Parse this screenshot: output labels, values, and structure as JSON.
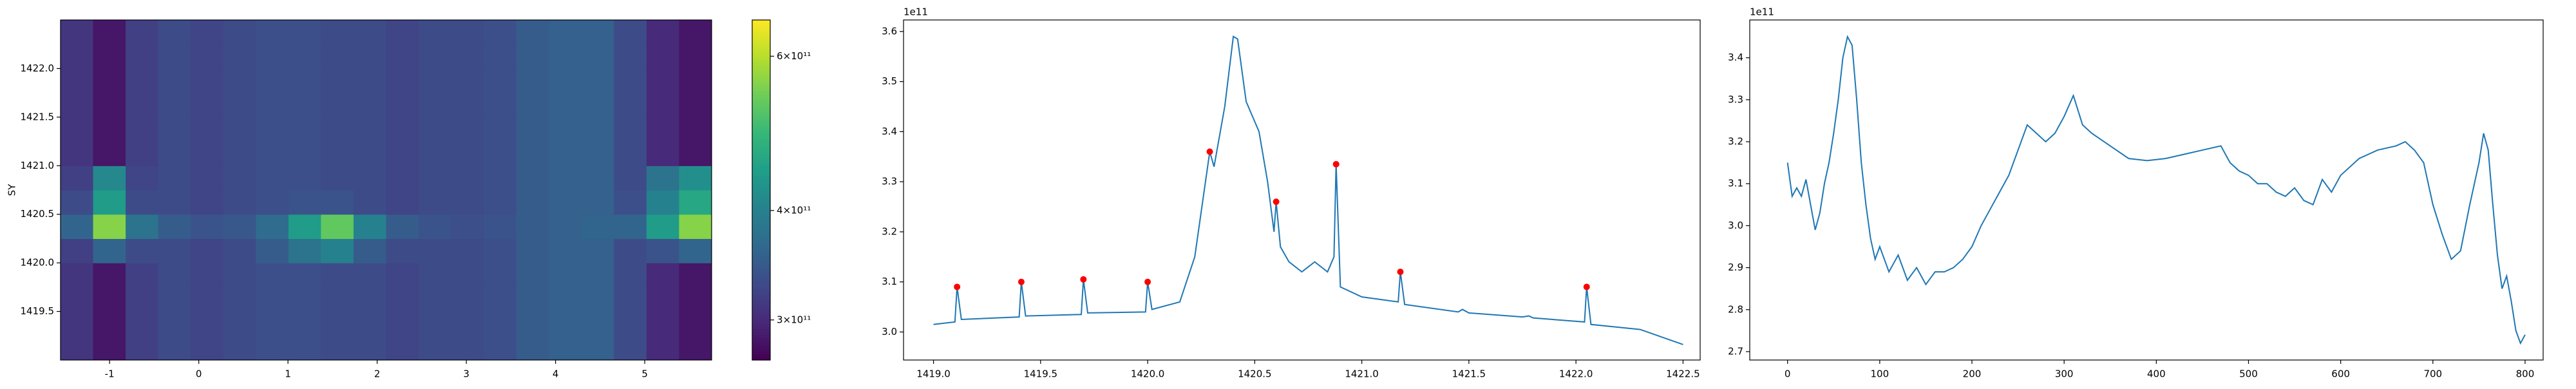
{
  "chart_data": [
    {
      "type": "heatmap",
      "ylabel": "SY",
      "colormap": "viridis",
      "log_color": true,
      "xlim": [
        -1.55,
        5.75
      ],
      "ylim": [
        1419.0,
        1422.5
      ],
      "xticks": [
        -1,
        0,
        1,
        2,
        3,
        4,
        5
      ],
      "yticks": [
        1419.5,
        {
          "value": 1420,
          "label": "1420.0"
        },
        1420.5,
        {
          "value": 1421,
          "label": "1421.0"
        },
        1421.5,
        {
          "value": 1422,
          "label": "1422.0"
        }
      ],
      "x_bins": [
        -1.55,
        -1.185,
        -0.82,
        -0.455,
        -0.09,
        0.275,
        0.64,
        1.005,
        1.37,
        1.735,
        2.1,
        2.465,
        2.83,
        3.195,
        3.56,
        3.925,
        4.29,
        4.655,
        5.02,
        5.385,
        5.75
      ],
      "y_bins": [
        1419.0,
        1419.25,
        1419.5,
        1419.75,
        1420.0,
        1420.25,
        1420.5,
        1420.75,
        1421.0,
        1421.25,
        1421.5,
        1421.75,
        1422.0,
        1422.25,
        1422.5
      ],
      "z": [
        [
          310000000000.0,
          285000000000.0,
          320000000000.0,
          330000000000.0,
          325000000000.0,
          330000000000.0,
          335000000000.0,
          335000000000.0,
          330000000000.0,
          330000000000.0,
          325000000000.0,
          330000000000.0,
          330000000000.0,
          335000000000.0,
          350000000000.0,
          355000000000.0,
          355000000000.0,
          330000000000.0,
          300000000000.0,
          285000000000.0
        ],
        [
          310000000000.0,
          285000000000.0,
          320000000000.0,
          330000000000.0,
          325000000000.0,
          330000000000.0,
          335000000000.0,
          335000000000.0,
          330000000000.0,
          330000000000.0,
          325000000000.0,
          330000000000.0,
          330000000000.0,
          335000000000.0,
          350000000000.0,
          355000000000.0,
          355000000000.0,
          330000000000.0,
          300000000000.0,
          285000000000.0
        ],
        [
          310000000000.0,
          285000000000.0,
          320000000000.0,
          330000000000.0,
          325000000000.0,
          330000000000.0,
          335000000000.0,
          335000000000.0,
          330000000000.0,
          330000000000.0,
          325000000000.0,
          330000000000.0,
          330000000000.0,
          335000000000.0,
          350000000000.0,
          355000000000.0,
          355000000000.0,
          330000000000.0,
          300000000000.0,
          285000000000.0
        ],
        [
          310000000000.0,
          285000000000.0,
          320000000000.0,
          330000000000.0,
          325000000000.0,
          330000000000.0,
          335000000000.0,
          335000000000.0,
          330000000000.0,
          330000000000.0,
          325000000000.0,
          330000000000.0,
          330000000000.0,
          335000000000.0,
          350000000000.0,
          355000000000.0,
          355000000000.0,
          330000000000.0,
          300000000000.0,
          285000000000.0
        ],
        [
          320000000000.0,
          360000000000.0,
          330000000000.0,
          330000000000.0,
          325000000000.0,
          330000000000.0,
          350000000000.0,
          380000000000.0,
          400000000000.0,
          350000000000.0,
          330000000000.0,
          330000000000.0,
          330000000000.0,
          335000000000.0,
          350000000000.0,
          355000000000.0,
          355000000000.0,
          330000000000.0,
          340000000000.0,
          360000000000.0
        ],
        [
          360000000000.0,
          560000000000.0,
          380000000000.0,
          350000000000.0,
          340000000000.0,
          345000000000.0,
          370000000000.0,
          440000000000.0,
          530000000000.0,
          400000000000.0,
          350000000000.0,
          340000000000.0,
          335000000000.0,
          340000000000.0,
          350000000000.0,
          355000000000.0,
          360000000000.0,
          360000000000.0,
          440000000000.0,
          560000000000.0
        ],
        [
          330000000000.0,
          440000000000.0,
          330000000000.0,
          330000000000.0,
          325000000000.0,
          330000000000.0,
          335000000000.0,
          340000000000.0,
          340000000000.0,
          330000000000.0,
          325000000000.0,
          330000000000.0,
          330000000000.0,
          335000000000.0,
          350000000000.0,
          355000000000.0,
          355000000000.0,
          335000000000.0,
          400000000000.0,
          460000000000.0
        ],
        [
          320000000000.0,
          410000000000.0,
          325000000000.0,
          330000000000.0,
          325000000000.0,
          330000000000.0,
          335000000000.0,
          335000000000.0,
          330000000000.0,
          330000000000.0,
          325000000000.0,
          330000000000.0,
          330000000000.0,
          335000000000.0,
          350000000000.0,
          355000000000.0,
          355000000000.0,
          330000000000.0,
          380000000000.0,
          420000000000.0
        ],
        [
          310000000000.0,
          285000000000.0,
          320000000000.0,
          330000000000.0,
          325000000000.0,
          330000000000.0,
          335000000000.0,
          335000000000.0,
          330000000000.0,
          330000000000.0,
          325000000000.0,
          330000000000.0,
          330000000000.0,
          335000000000.0,
          350000000000.0,
          355000000000.0,
          355000000000.0,
          330000000000.0,
          300000000000.0,
          285000000000.0
        ],
        [
          310000000000.0,
          285000000000.0,
          320000000000.0,
          330000000000.0,
          325000000000.0,
          330000000000.0,
          335000000000.0,
          335000000000.0,
          330000000000.0,
          330000000000.0,
          325000000000.0,
          330000000000.0,
          330000000000.0,
          335000000000.0,
          350000000000.0,
          355000000000.0,
          355000000000.0,
          330000000000.0,
          300000000000.0,
          285000000000.0
        ],
        [
          310000000000.0,
          285000000000.0,
          320000000000.0,
          330000000000.0,
          325000000000.0,
          330000000000.0,
          335000000000.0,
          335000000000.0,
          330000000000.0,
          330000000000.0,
          325000000000.0,
          330000000000.0,
          330000000000.0,
          335000000000.0,
          350000000000.0,
          355000000000.0,
          355000000000.0,
          330000000000.0,
          300000000000.0,
          285000000000.0
        ],
        [
          310000000000.0,
          285000000000.0,
          320000000000.0,
          330000000000.0,
          325000000000.0,
          330000000000.0,
          335000000000.0,
          335000000000.0,
          330000000000.0,
          330000000000.0,
          325000000000.0,
          330000000000.0,
          330000000000.0,
          335000000000.0,
          350000000000.0,
          355000000000.0,
          355000000000.0,
          330000000000.0,
          300000000000.0,
          285000000000.0
        ],
        [
          310000000000.0,
          285000000000.0,
          320000000000.0,
          330000000000.0,
          325000000000.0,
          330000000000.0,
          335000000000.0,
          335000000000.0,
          330000000000.0,
          330000000000.0,
          325000000000.0,
          330000000000.0,
          330000000000.0,
          335000000000.0,
          350000000000.0,
          355000000000.0,
          355000000000.0,
          330000000000.0,
          300000000000.0,
          285000000000.0
        ],
        [
          310000000000.0,
          285000000000.0,
          320000000000.0,
          330000000000.0,
          325000000000.0,
          330000000000.0,
          335000000000.0,
          335000000000.0,
          330000000000.0,
          330000000000.0,
          325000000000.0,
          330000000000.0,
          330000000000.0,
          335000000000.0,
          350000000000.0,
          355000000000.0,
          355000000000.0,
          330000000000.0,
          300000000000.0,
          285000000000.0
        ]
      ],
      "clim": [
        270000000000.0,
        660000000000.0
      ],
      "cticks": [
        {
          "value": 300000000000.0,
          "label": "3×10¹¹"
        },
        {
          "value": 400000000000.0,
          "label": "4×10¹¹"
        },
        {
          "value": 600000000000.0,
          "label": "6×10¹¹"
        }
      ]
    },
    {
      "type": "line",
      "offset_label": "1e11",
      "xlim": [
        1418.86,
        1422.58
      ],
      "ylim": [
        2.944,
        3.623
      ],
      "xticks": [
        {
          "value": 1419,
          "label": "1419.0"
        },
        1419.5,
        {
          "value": 1420,
          "label": "1420.0"
        },
        1420.5,
        {
          "value": 1421,
          "label": "1421.0"
        },
        1421.5,
        {
          "value": 1422,
          "label": "1422.0"
        },
        1422.5
      ],
      "yticks": [
        {
          "value": 3,
          "label": "3.0"
        },
        3.1,
        3.2,
        3.3,
        3.4,
        3.5,
        3.6
      ],
      "series": [
        {
          "color": "#1f77b4",
          "mode": "line",
          "x": [
            1419.0,
            1419.1,
            1419.11,
            1419.13,
            1419.4,
            1419.41,
            1419.43,
            1419.69,
            1419.7,
            1419.72,
            1419.99,
            1420.0,
            1420.02,
            1420.15,
            1420.22,
            1420.27,
            1420.29,
            1420.31,
            1420.36,
            1420.4,
            1420.42,
            1420.46,
            1420.52,
            1420.56,
            1420.59,
            1420.6,
            1420.62,
            1420.66,
            1420.72,
            1420.78,
            1420.84,
            1420.87,
            1420.88,
            1420.9,
            1421.0,
            1421.17,
            1421.18,
            1421.2,
            1421.45,
            1421.47,
            1421.5,
            1421.75,
            1421.78,
            1421.8,
            1422.04,
            1422.05,
            1422.07,
            1422.3,
            1422.5
          ],
          "values": [
            3.015,
            3.02,
            3.09,
            3.025,
            3.03,
            3.1,
            3.032,
            3.035,
            3.105,
            3.038,
            3.04,
            3.1,
            3.045,
            3.06,
            3.15,
            3.3,
            3.36,
            3.33,
            3.45,
            3.59,
            3.585,
            3.46,
            3.4,
            3.3,
            3.2,
            3.26,
            3.17,
            3.14,
            3.12,
            3.14,
            3.12,
            3.15,
            3.335,
            3.09,
            3.07,
            3.06,
            3.12,
            3.055,
            3.04,
            3.045,
            3.038,
            3.03,
            3.032,
            3.028,
            3.02,
            3.09,
            3.015,
            3.005,
            2.975
          ]
        },
        {
          "color": "#ff0000",
          "mode": "markers",
          "x": [
            1419.11,
            1419.41,
            1419.7,
            1420.0,
            1420.29,
            1420.6,
            1420.88,
            1421.18,
            1422.05
          ],
          "values": [
            3.09,
            3.1,
            3.105,
            3.1,
            3.36,
            3.26,
            3.335,
            3.12,
            3.09
          ]
        }
      ]
    },
    {
      "type": "line",
      "offset_label": "1e11",
      "xlim": [
        -41,
        819.6
      ],
      "ylim": [
        2.68,
        3.49
      ],
      "xticks": [
        0,
        100,
        200,
        300,
        400,
        500,
        600,
        700,
        800
      ],
      "yticks": [
        2.7,
        2.8,
        2.9,
        {
          "value": 3,
          "label": "3.0"
        },
        3.1,
        3.2,
        3.3,
        3.4
      ],
      "series": [
        {
          "color": "#1f77b4",
          "mode": "line",
          "x": [
            0,
            5,
            10,
            15,
            20,
            25,
            30,
            35,
            40,
            45,
            50,
            55,
            60,
            65,
            70,
            75,
            80,
            85,
            90,
            95,
            100,
            110,
            120,
            130,
            140,
            150,
            160,
            170,
            180,
            190,
            200,
            210,
            220,
            230,
            240,
            250,
            260,
            270,
            280,
            290,
            300,
            310,
            320,
            330,
            350,
            370,
            390,
            410,
            430,
            450,
            470,
            480,
            490,
            500,
            510,
            520,
            530,
            540,
            550,
            560,
            570,
            580,
            590,
            600,
            620,
            640,
            660,
            670,
            680,
            690,
            700,
            710,
            720,
            730,
            740,
            750,
            755,
            760,
            765,
            770,
            775,
            780,
            785,
            790,
            795,
            800
          ],
          "values": [
            3.15,
            3.07,
            3.09,
            3.07,
            3.11,
            3.05,
            2.99,
            3.03,
            3.1,
            3.15,
            3.22,
            3.3,
            3.4,
            3.45,
            3.43,
            3.3,
            3.15,
            3.05,
            2.97,
            2.92,
            2.95,
            2.89,
            2.93,
            2.87,
            2.9,
            2.86,
            2.89,
            2.89,
            2.9,
            2.92,
            2.95,
            3.0,
            3.04,
            3.08,
            3.12,
            3.18,
            3.24,
            3.22,
            3.2,
            3.22,
            3.26,
            3.31,
            3.24,
            3.22,
            3.19,
            3.16,
            3.155,
            3.16,
            3.17,
            3.18,
            3.19,
            3.15,
            3.13,
            3.12,
            3.1,
            3.1,
            3.08,
            3.07,
            3.09,
            3.06,
            3.05,
            3.11,
            3.08,
            3.12,
            3.16,
            3.18,
            3.19,
            3.2,
            3.18,
            3.15,
            3.05,
            2.98,
            2.92,
            2.94,
            3.05,
            3.15,
            3.22,
            3.18,
            3.05,
            2.93,
            2.85,
            2.88,
            2.82,
            2.75,
            2.72,
            2.74
          ]
        }
      ]
    }
  ]
}
